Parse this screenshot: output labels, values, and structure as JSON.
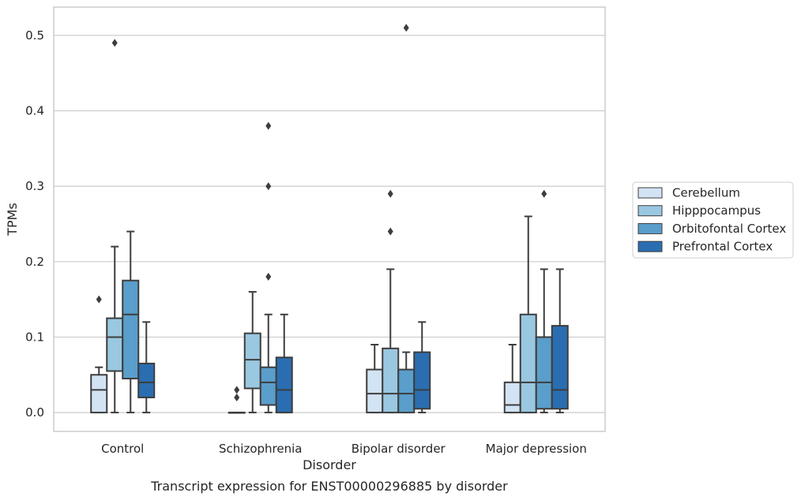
{
  "chart_data": {
    "type": "box",
    "xlabel": "Disorder",
    "ylabel": "TPMs",
    "caption": "Transcript expression for ENST00000296885 by disorder",
    "ylim": [
      -0.025,
      0.5375
    ],
    "yticks": [
      "0.0",
      "0.1",
      "0.2",
      "0.3",
      "0.4",
      "0.5"
    ],
    "ytick_values": [
      0.0,
      0.1,
      0.2,
      0.3,
      0.4,
      0.5
    ],
    "grid": true,
    "legend_position": "right",
    "categories": [
      "Control",
      "Schizophrenia",
      "Bipolar disorder",
      "Major depression"
    ],
    "series": [
      {
        "name": "Cerebellum",
        "color": "#d2e3f3",
        "boxes": [
          {
            "whislo": 0.0,
            "q1": 0.0,
            "med": 0.03,
            "q3": 0.05,
            "whishi": 0.06,
            "fliers": [
              0.15
            ]
          },
          {
            "whislo": 0.0,
            "q1": 0.0,
            "med": 0.0,
            "q3": 0.0,
            "whishi": 0.0,
            "fliers": [
              0.03,
              0.02
            ]
          },
          {
            "whislo": 0.0,
            "q1": 0.0,
            "med": 0.025,
            "q3": 0.057,
            "whishi": 0.09,
            "fliers": []
          },
          {
            "whislo": 0.0,
            "q1": 0.0,
            "med": 0.01,
            "q3": 0.04,
            "whishi": 0.09,
            "fliers": []
          }
        ]
      },
      {
        "name": "Hipppocampus",
        "color": "#9ac8e0",
        "boxes": [
          {
            "whislo": 0.0,
            "q1": 0.055,
            "med": 0.1,
            "q3": 0.125,
            "whishi": 0.22,
            "fliers": [
              0.49
            ]
          },
          {
            "whislo": 0.0,
            "q1": 0.032,
            "med": 0.07,
            "q3": 0.105,
            "whishi": 0.16,
            "fliers": []
          },
          {
            "whislo": 0.0,
            "q1": 0.0,
            "med": 0.025,
            "q3": 0.085,
            "whishi": 0.19,
            "fliers": [
              0.29,
              0.24
            ]
          },
          {
            "whislo": 0.0,
            "q1": 0.0,
            "med": 0.04,
            "q3": 0.13,
            "whishi": 0.26,
            "fliers": []
          }
        ]
      },
      {
        "name": "Orbitofontal Cortex",
        "color": "#5a9ecb",
        "boxes": [
          {
            "whislo": 0.0,
            "q1": 0.045,
            "med": 0.13,
            "q3": 0.175,
            "whishi": 0.24,
            "fliers": []
          },
          {
            "whislo": 0.0,
            "q1": 0.01,
            "med": 0.04,
            "q3": 0.06,
            "whishi": 0.13,
            "fliers": [
              0.38,
              0.3,
              0.18
            ]
          },
          {
            "whislo": 0.0,
            "q1": 0.0,
            "med": 0.025,
            "q3": 0.057,
            "whishi": 0.08,
            "fliers": [
              0.51
            ]
          },
          {
            "whislo": 0.0,
            "q1": 0.005,
            "med": 0.04,
            "q3": 0.1,
            "whishi": 0.19,
            "fliers": [
              0.29
            ]
          }
        ]
      },
      {
        "name": "Prefrontal Cortex",
        "color": "#2a6eb1",
        "boxes": [
          {
            "whislo": 0.0,
            "q1": 0.02,
            "med": 0.04,
            "q3": 0.065,
            "whishi": 0.12,
            "fliers": []
          },
          {
            "whislo": 0.0,
            "q1": 0.0,
            "med": 0.03,
            "q3": 0.073,
            "whishi": 0.13,
            "fliers": []
          },
          {
            "whislo": 0.0,
            "q1": 0.005,
            "med": 0.03,
            "q3": 0.08,
            "whishi": 0.12,
            "fliers": []
          },
          {
            "whislo": 0.0,
            "q1": 0.005,
            "med": 0.03,
            "q3": 0.115,
            "whishi": 0.19,
            "fliers": []
          }
        ]
      }
    ]
  }
}
